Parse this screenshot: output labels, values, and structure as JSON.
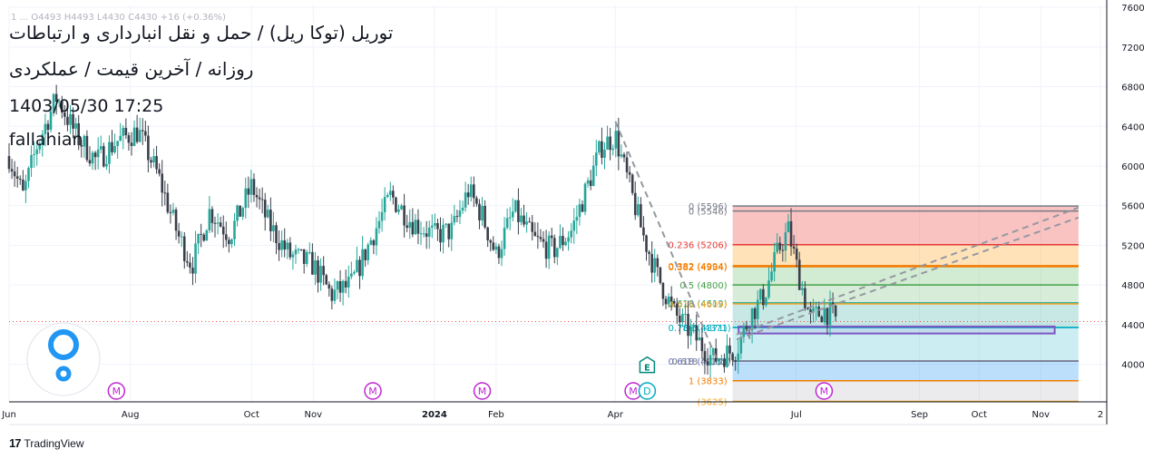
{
  "header": {
    "ohlc_line": "1 ... O4493 H4493 L4430 C4430 +16 (+0.36%)",
    "title": "توریل (توکا ریل) / حمل و نقل انبارداری و ارتباطات",
    "subtitle": "روزانه / آخرین قیمت / عملکردی",
    "datetime": "1403/05/30 17:25",
    "author": "fallahian"
  },
  "branding": {
    "label": "TradingView",
    "mark": "17"
  },
  "colors": {
    "up": "#26a69a",
    "down": "#ef5350",
    "candle": "#3b3f4a",
    "grid": "#f0f3fa",
    "axis_text": "#131722",
    "event_m": "#c026d3",
    "event_d": "#00acc1",
    "elliott_e": "#00897b"
  },
  "chart_data": {
    "type": "candlestick",
    "y_axis": {
      "ticks": [
        7600,
        7200,
        6800,
        6400,
        6000,
        5600,
        5200,
        4800,
        4400,
        4000
      ],
      "range": [
        3620,
        7620
      ],
      "current_price_line": 4430
    },
    "x_axis": {
      "labels": [
        {
          "label": "Jun",
          "date": "2023-06-01"
        },
        {
          "label": "Aug",
          "date": "2023-08-01"
        },
        {
          "label": "Oct",
          "date": "2023-10-01"
        },
        {
          "label": "Nov",
          "date": "2023-11-01"
        },
        {
          "label": "2024",
          "date": "2024-01-01"
        },
        {
          "label": "Feb",
          "date": "2024-02-01"
        },
        {
          "label": "Apr",
          "date": "2024-04-01"
        },
        {
          "label": "Jul",
          "date": "2024-07-01"
        },
        {
          "label": "Sep",
          "date": "2024-09-01"
        },
        {
          "label": "Oct",
          "date": "2024-10-01"
        },
        {
          "label": "Nov",
          "date": "2024-11-01"
        },
        {
          "label": "2",
          "date": "2024-12-01"
        }
      ]
    },
    "price_path": [
      [
        "2023-06-01",
        6100
      ],
      [
        "2023-06-08",
        5700
      ],
      [
        "2023-06-15",
        6200
      ],
      [
        "2023-06-25",
        6700
      ],
      [
        "2023-07-05",
        6300
      ],
      [
        "2023-07-15",
        6050
      ],
      [
        "2023-07-25",
        6250
      ],
      [
        "2023-08-05",
        6350
      ],
      [
        "2023-08-15",
        5900
      ],
      [
        "2023-08-25",
        5300
      ],
      [
        "2023-09-01",
        5000
      ],
      [
        "2023-09-10",
        5550
      ],
      [
        "2023-09-20",
        5300
      ],
      [
        "2023-10-01",
        5800
      ],
      [
        "2023-10-10",
        5400
      ],
      [
        "2023-10-20",
        5100
      ],
      [
        "2023-11-01",
        5000
      ],
      [
        "2023-11-10",
        4700
      ],
      [
        "2023-11-20",
        4800
      ],
      [
        "2023-12-01",
        5300
      ],
      [
        "2023-12-10",
        5700
      ],
      [
        "2023-12-20",
        5450
      ],
      [
        "2024-01-01",
        5300
      ],
      [
        "2024-01-10",
        5350
      ],
      [
        "2024-01-18",
        5750
      ],
      [
        "2024-01-25",
        5500
      ],
      [
        "2024-02-01",
        5100
      ],
      [
        "2024-02-10",
        5550
      ],
      [
        "2024-02-20",
        5250
      ],
      [
        "2024-03-01",
        5150
      ],
      [
        "2024-03-10",
        5350
      ],
      [
        "2024-03-18",
        5800
      ],
      [
        "2024-03-25",
        6200
      ],
      [
        "2024-04-01",
        6300
      ],
      [
        "2024-04-08",
        5800
      ],
      [
        "2024-04-15",
        5300
      ],
      [
        "2024-04-22",
        4900
      ],
      [
        "2024-05-01",
        4500
      ],
      [
        "2024-05-10",
        4300
      ],
      [
        "2024-05-20",
        4050
      ],
      [
        "2024-06-01",
        4150
      ],
      [
        "2024-06-08",
        4500
      ],
      [
        "2024-06-15",
        4700
      ],
      [
        "2024-06-22",
        5150
      ],
      [
        "2024-06-27",
        5350
      ],
      [
        "2024-07-01",
        5000
      ],
      [
        "2024-07-08",
        4450
      ],
      [
        "2024-07-15",
        4550
      ],
      [
        "2024-07-22",
        4430
      ]
    ],
    "fib_upper": {
      "date_range": [
        "2024-05-30",
        "2024-11-20"
      ],
      "levels": [
        {
          "label": "0 (5596)",
          "value": 5596,
          "color": "#787b86"
        },
        {
          "label": "0 (5546)",
          "value": 5546,
          "color": "#787b86"
        },
        {
          "label": "0.236 (5206)",
          "value": 5206,
          "color": "#e53935"
        },
        {
          "label": "0.382 (4994)",
          "value": 4994,
          "color": "#f57c00"
        },
        {
          "label": "0.382 (4984)",
          "value": 4984,
          "color": "#f57c00"
        },
        {
          "label": "0.5 (4800)",
          "value": 4800,
          "color": "#43a047"
        },
        {
          "label": "0.618 (4619)",
          "value": 4619,
          "color": "#26a69a"
        },
        {
          "label": "0.618 (4609)",
          "value": 4609,
          "color": "#f9a825"
        },
        {
          "label": "0.786 (4371)",
          "value": 4371,
          "color": "#00acc1"
        },
        {
          "label": "0.5 (4371)",
          "value": 4371,
          "color": "#00acc1"
        }
      ]
    },
    "fib_lower": {
      "levels": [
        {
          "label": "0.618 (4032)",
          "value": 4032,
          "color": "#5c6bc0"
        },
        {
          "label": "0.618 (4032)",
          "value": 4032,
          "color": "#787b86"
        },
        {
          "label": "1 (3833)",
          "value": 3833,
          "color": "#f57c00"
        },
        {
          "label": "(3625)",
          "value": 3625,
          "color": "#f9a825"
        }
      ]
    },
    "zone_box": {
      "date_range": [
        "2024-06-02",
        "2024-11-08"
      ],
      "top": 4380,
      "bottom": 4310,
      "color": "#7e57c2"
    },
    "trendlines": [
      {
        "from": [
          "2024-04-01",
          6450
        ],
        "to": [
          "2024-05-22",
          4050
        ],
        "style": "dashed"
      },
      {
        "from": [
          "2024-06-01",
          4300
        ],
        "to": [
          "2024-11-20",
          5580
        ],
        "style": "dashed"
      },
      {
        "from": [
          "2024-06-01",
          4250
        ],
        "to": [
          "2024-11-20",
          5480
        ],
        "style": "dashed"
      }
    ],
    "events": [
      {
        "type": "M",
        "date": "2023-07-25"
      },
      {
        "type": "M",
        "date": "2023-12-01"
      },
      {
        "type": "M",
        "date": "2024-01-25"
      },
      {
        "type": "M",
        "date": "2024-04-10"
      },
      {
        "type": "D",
        "date": "2024-04-17"
      },
      {
        "type": "E",
        "date": "2024-04-17",
        "price": 3980
      },
      {
        "type": "M",
        "date": "2024-07-15"
      }
    ]
  }
}
